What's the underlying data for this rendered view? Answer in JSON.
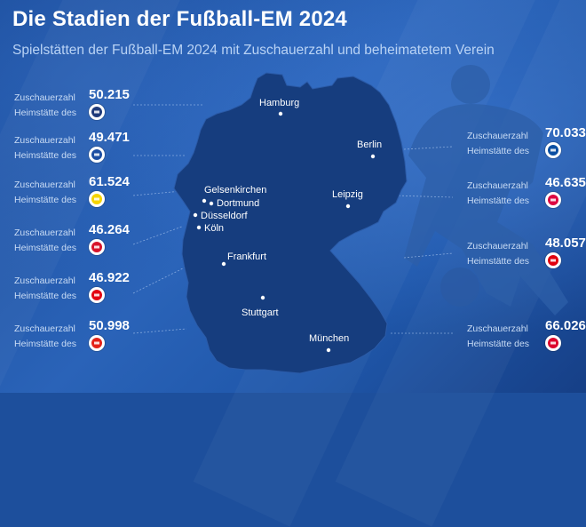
{
  "title": "Die Stadien der Fußball-EM 2024",
  "subtitle": "Spielstätten der Fußball-EM 2024 mit Zuschauerzahl und beheimatetem Verein",
  "card_label_line1": "Zuschauerzahl",
  "card_label_line2": "Heimstätte des",
  "cities": [
    {
      "name": "Hamburg"
    },
    {
      "name": "Berlin"
    },
    {
      "name": "Gelsenkirchen"
    },
    {
      "name": "Dortmund"
    },
    {
      "name": "Düsseldorf"
    },
    {
      "name": "Köln"
    },
    {
      "name": "Leipzig"
    },
    {
      "name": "Frankfurt"
    },
    {
      "name": "Stuttgart"
    },
    {
      "name": "München"
    }
  ],
  "stadiums_left": [
    {
      "capacity": "50.215",
      "club_icon": "hsv-crest-icon",
      "color": "#1f3a7a"
    },
    {
      "capacity": "49.471",
      "club_icon": "schalke-crest-icon",
      "color": "#1d4fa3"
    },
    {
      "capacity": "61.524",
      "club_icon": "bvb-crest-icon",
      "color": "#f5d400"
    },
    {
      "capacity": "46.264",
      "club_icon": "fortuna-crest-icon",
      "color": "#d7142b"
    },
    {
      "capacity": "46.922",
      "club_icon": "fc-koeln-crest-icon",
      "color": "#e30613"
    },
    {
      "capacity": "50.998",
      "club_icon": "vfb-crest-icon",
      "color": "#e32219"
    }
  ],
  "stadiums_right": [
    {
      "capacity": "70.033",
      "club_icon": "hertha-crest-icon",
      "color": "#0b4fa2"
    },
    {
      "capacity": "46.635",
      "club_icon": "rb-leipzig-crest-icon",
      "color": "#dd0741"
    },
    {
      "capacity": "48.057",
      "club_icon": "eintracht-crest-icon",
      "color": "#e1000f"
    },
    {
      "capacity": "66.026",
      "club_icon": "fc-bayern-crest-icon",
      "color": "#dc052d"
    }
  ]
}
